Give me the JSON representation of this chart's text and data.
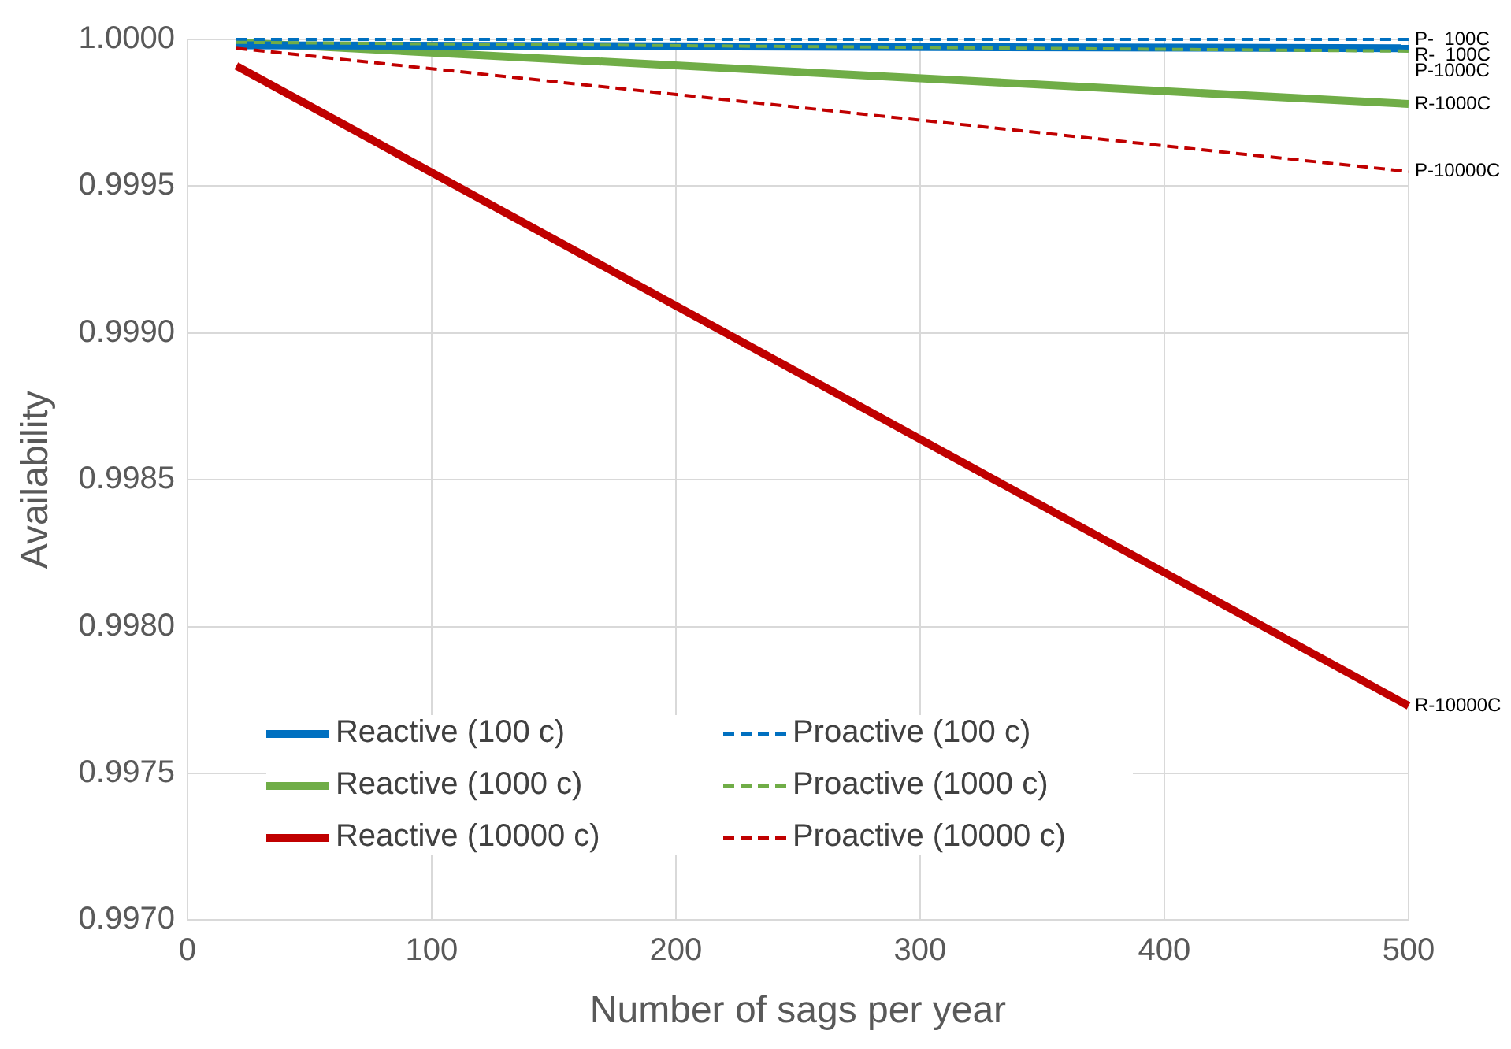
{
  "chart_data": {
    "type": "line",
    "xlabel": "Number of sags per year",
    "ylabel": "Availability",
    "x": [
      20,
      500
    ],
    "series": [
      {
        "name": "Reactive (100 c)",
        "color": "#0070c0",
        "values": [
          0.99998,
          0.99997
        ],
        "line_style": "solid"
      },
      {
        "name": "Proactive (100 c)",
        "color": "#0070c0",
        "values": [
          1,
          1
        ],
        "line_style": "dashed"
      },
      {
        "name": "Reactive (1000 c)",
        "color": "#70ad47",
        "values": [
          0.99999,
          0.99978
        ],
        "line_style": "solid"
      },
      {
        "name": "Proactive (1000 c)",
        "color": "#70ad47",
        "values": [
          0.99999,
          0.99996
        ],
        "line_style": "dashed"
      },
      {
        "name": "Reactive (10000 c)",
        "color": "#c00000",
        "values": [
          0.99991,
          0.99773
        ],
        "line_style": "solid"
      },
      {
        "name": "Proactive (10000 c)",
        "color": "#c00000",
        "values": [
          0.99997,
          0.99955
        ],
        "line_style": "dashed"
      }
    ],
    "xlim": [
      0,
      500
    ],
    "xticks": [
      0,
      100,
      200,
      300,
      400,
      500
    ],
    "ylim": [
      0.997,
      1
    ],
    "yticks": [
      {
        "value": 0.997,
        "label": "0.9970"
      },
      {
        "value": 0.9975,
        "label": "0.9975"
      },
      {
        "value": 0.998,
        "label": "0.9980"
      },
      {
        "value": 0.9985,
        "label": "0.9985"
      },
      {
        "value": 0.999,
        "label": "0.9990"
      },
      {
        "value": 0.9995,
        "label": "0.9995"
      },
      {
        "value": 1,
        "label": "1.0000"
      }
    ],
    "grid": true,
    "legend": "bottom left",
    "marker": "none",
    "annotations": [
      "P-  100C",
      "R-  100C",
      "P-1000C",
      "R-1000C",
      "P-10000C",
      "R-10000C"
    ]
  }
}
